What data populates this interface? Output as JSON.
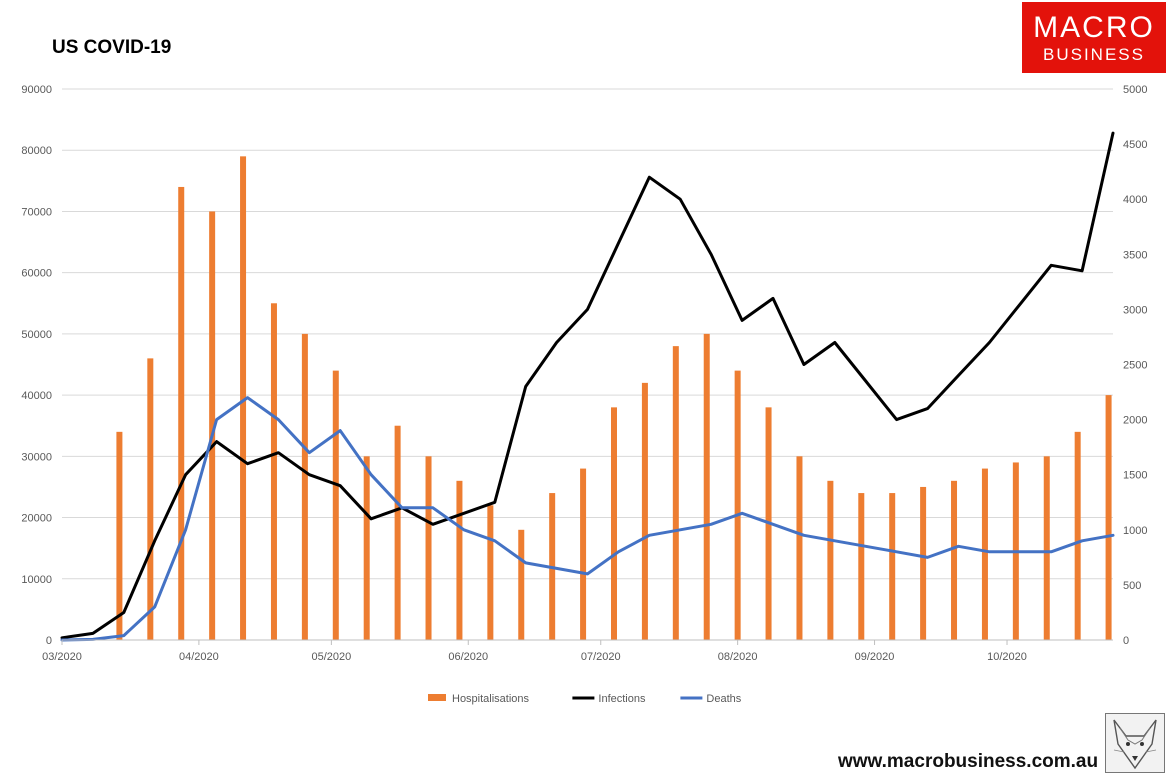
{
  "colors": {
    "hospitalisations": "#ed7d31",
    "infections": "#000000",
    "deaths": "#4472c4",
    "brand_red": "#e3120b",
    "grid": "#d9d9d9"
  },
  "branding": {
    "logo_line1": "MACRO",
    "logo_line2": "BUSINESS",
    "website": "www.macrobusiness.com.au",
    "mascot_icon": "fox-sketch-icon"
  },
  "chart_data": {
    "type": "bar+line",
    "title": "US COVID-19",
    "xlabel": "",
    "x_ticks": [
      "03/2020",
      "04/2020",
      "05/2020",
      "06/2020",
      "07/2020",
      "08/2020",
      "09/2020",
      "10/2020"
    ],
    "x_start": "2020-03-01",
    "x_end": "2020-10-25",
    "y_left": {
      "label": "",
      "ticks": [
        0,
        10000,
        20000,
        30000,
        40000,
        50000,
        60000,
        70000,
        80000,
        90000
      ],
      "range": [
        0,
        90000
      ]
    },
    "y_right": {
      "label": "",
      "ticks": [
        0,
        500,
        1000,
        1500,
        2000,
        2500,
        3000,
        3500,
        4000,
        4500,
        5000
      ],
      "range": [
        0,
        5000
      ]
    },
    "grid": "horizontal",
    "legend": {
      "placement": "bottom",
      "entries": [
        "Hospitalisations",
        "Infections",
        "Deaths"
      ]
    },
    "series": [
      {
        "name": "Hospitalisations",
        "kind": "bar",
        "axis": "left",
        "dates": [
          "2020-03-14",
          "2020-03-21",
          "2020-03-28",
          "2020-04-04",
          "2020-04-11",
          "2020-04-18",
          "2020-04-25",
          "2020-05-02",
          "2020-05-09",
          "2020-05-16",
          "2020-05-23",
          "2020-05-30",
          "2020-06-06",
          "2020-06-13",
          "2020-06-20",
          "2020-06-27",
          "2020-07-04",
          "2020-07-11",
          "2020-07-18",
          "2020-07-25",
          "2020-08-01",
          "2020-08-08",
          "2020-08-15",
          "2020-08-22",
          "2020-08-29",
          "2020-09-05",
          "2020-09-12",
          "2020-09-19",
          "2020-09-26",
          "2020-10-03",
          "2020-10-10",
          "2020-10-17",
          "2020-10-24"
        ],
        "values": [
          34000,
          46000,
          74000,
          70000,
          79000,
          55000,
          50000,
          44000,
          30000,
          35000,
          30000,
          26000,
          22000,
          18000,
          24000,
          28000,
          38000,
          42000,
          48000,
          50000,
          44000,
          38000,
          30000,
          26000,
          24000,
          24000,
          25000,
          26000,
          28000,
          29000,
          30000,
          34000,
          40000
        ]
      },
      {
        "name": "Infections",
        "kind": "line",
        "axis": "right",
        "dates": [
          "2020-03-01",
          "2020-03-08",
          "2020-03-15",
          "2020-03-22",
          "2020-03-29",
          "2020-04-05",
          "2020-04-12",
          "2020-04-19",
          "2020-04-26",
          "2020-05-03",
          "2020-05-10",
          "2020-05-17",
          "2020-05-24",
          "2020-05-31",
          "2020-06-07",
          "2020-06-14",
          "2020-06-21",
          "2020-06-28",
          "2020-07-05",
          "2020-07-12",
          "2020-07-19",
          "2020-07-26",
          "2020-08-02",
          "2020-08-09",
          "2020-08-16",
          "2020-08-23",
          "2020-08-30",
          "2020-09-06",
          "2020-09-13",
          "2020-09-20",
          "2020-09-27",
          "2020-10-04",
          "2020-10-11",
          "2020-10-18",
          "2020-10-25"
        ],
        "values": [
          20,
          60,
          250,
          900,
          1500,
          1800,
          1600,
          1700,
          1500,
          1400,
          1100,
          1200,
          1050,
          1150,
          1250,
          2300,
          2700,
          3000,
          3600,
          4200,
          4000,
          3500,
          2900,
          3100,
          2500,
          2700,
          2350,
          2000,
          2100,
          2400,
          2700,
          3050,
          3400,
          3350,
          4600
        ]
      },
      {
        "name": "Deaths",
        "kind": "line",
        "axis": "right",
        "dates": [
          "2020-03-01",
          "2020-03-08",
          "2020-03-15",
          "2020-03-22",
          "2020-03-29",
          "2020-04-05",
          "2020-04-12",
          "2020-04-19",
          "2020-04-26",
          "2020-05-03",
          "2020-05-10",
          "2020-05-17",
          "2020-05-24",
          "2020-05-31",
          "2020-06-07",
          "2020-06-14",
          "2020-06-21",
          "2020-06-28",
          "2020-07-05",
          "2020-07-12",
          "2020-07-19",
          "2020-07-26",
          "2020-08-02",
          "2020-08-09",
          "2020-08-16",
          "2020-08-23",
          "2020-08-30",
          "2020-09-06",
          "2020-09-13",
          "2020-09-20",
          "2020-09-27",
          "2020-10-04",
          "2020-10-11",
          "2020-10-18",
          "2020-10-25"
        ],
        "values": [
          0,
          5,
          40,
          300,
          1000,
          2000,
          2200,
          2000,
          1700,
          1900,
          1500,
          1200,
          1200,
          1000,
          900,
          700,
          650,
          600,
          800,
          950,
          1000,
          1050,
          1150,
          1050,
          950,
          900,
          850,
          800,
          750,
          850,
          800,
          800,
          800,
          900,
          950
        ]
      }
    ]
  }
}
